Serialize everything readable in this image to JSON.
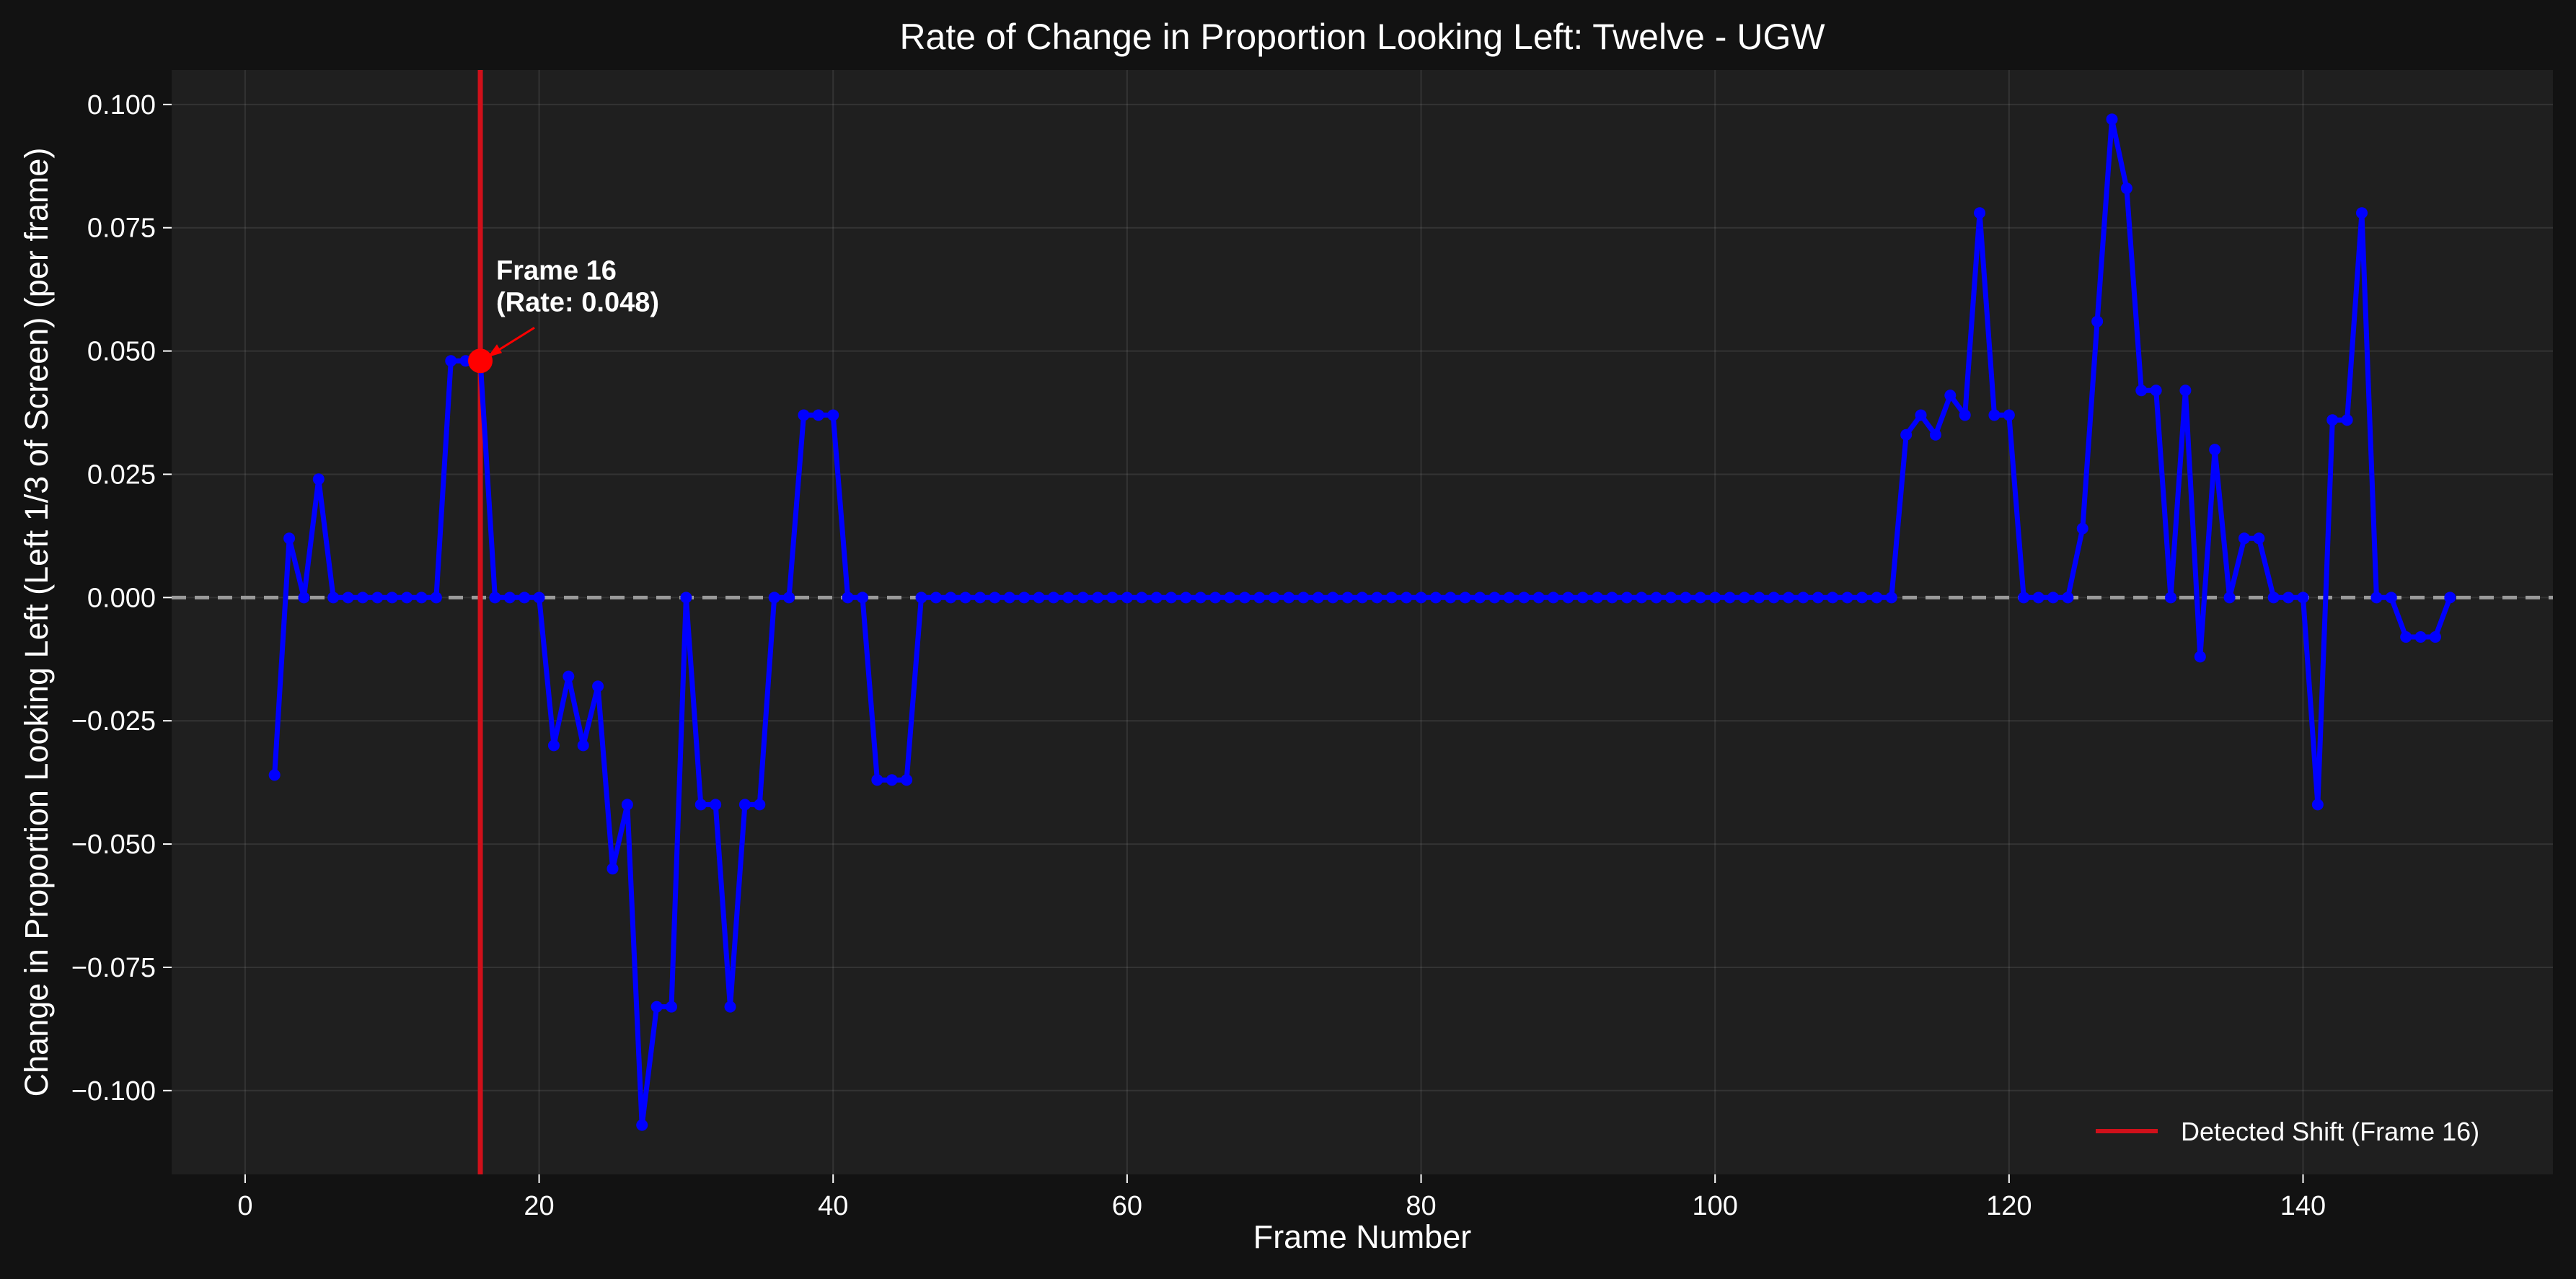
{
  "chart_data": {
    "type": "line",
    "title": "Rate of Change in Proportion Looking Left: Twelve - UGW",
    "xlabel": "Frame Number",
    "ylabel": "Change in Proportion Looking Left (Left 1/3 of Screen) (per frame)",
    "xlim": [
      -5,
      157
    ],
    "ylim": [
      -0.117,
      0.107
    ],
    "x_ticks": [
      0,
      20,
      40,
      60,
      80,
      100,
      120,
      140
    ],
    "y_ticks": [
      -0.1,
      -0.075,
      -0.05,
      -0.025,
      0.0,
      0.025,
      0.05,
      0.075,
      0.1
    ],
    "x_tick_labels": [
      "0",
      "20",
      "40",
      "60",
      "80",
      "100",
      "120",
      "140"
    ],
    "y_tick_labels": [
      "−0.100",
      "−0.075",
      "−0.050",
      "−0.025",
      "0.000",
      "0.025",
      "0.050",
      "0.075",
      "0.100"
    ],
    "grid": true,
    "reference_line_y": 0,
    "series": [
      {
        "color": "#0000ff",
        "x": [
          2,
          3,
          4,
          5,
          6,
          7,
          8,
          9,
          10,
          11,
          12,
          13,
          14,
          15,
          16,
          17,
          18,
          19,
          20,
          21,
          22,
          23,
          24,
          25,
          26,
          27,
          28,
          29,
          30,
          31,
          32,
          33,
          34,
          35,
          36,
          37,
          38,
          39,
          40,
          41,
          42,
          43,
          44,
          45,
          46,
          47,
          48,
          49,
          50,
          51,
          52,
          53,
          54,
          55,
          56,
          57,
          58,
          59,
          60,
          61,
          62,
          63,
          64,
          65,
          66,
          67,
          68,
          69,
          70,
          71,
          72,
          73,
          74,
          75,
          76,
          77,
          78,
          79,
          80,
          81,
          82,
          83,
          84,
          85,
          86,
          87,
          88,
          89,
          90,
          91,
          92,
          93,
          94,
          95,
          96,
          97,
          98,
          99,
          100,
          101,
          102,
          103,
          104,
          105,
          106,
          107,
          108,
          109,
          110,
          111,
          112,
          113,
          114,
          115,
          116,
          117,
          118,
          119,
          120,
          121,
          122,
          123,
          124,
          125,
          126,
          127,
          128,
          129,
          130,
          131,
          132,
          133,
          134,
          135,
          136,
          137,
          138,
          139,
          140,
          141,
          142,
          143,
          144,
          145,
          146,
          147,
          148,
          149,
          150
        ],
        "y": [
          -0.036,
          0.012,
          0,
          0.024,
          0,
          0,
          0,
          0,
          0,
          0,
          0,
          0,
          0.048,
          0.048,
          0.048,
          0,
          0,
          0,
          0,
          -0.03,
          -0.016,
          -0.03,
          -0.018,
          -0.055,
          -0.042,
          -0.107,
          -0.083,
          -0.083,
          0,
          -0.042,
          -0.042,
          -0.083,
          -0.042,
          -0.042,
          0,
          0,
          0.037,
          0.037,
          0.037,
          0,
          0,
          -0.037,
          -0.037,
          -0.037,
          0,
          0,
          0,
          0,
          0,
          0,
          0,
          0,
          0,
          0,
          0,
          0,
          0,
          0,
          0,
          0,
          0,
          0,
          0,
          0,
          0,
          0,
          0,
          0,
          0,
          0,
          0,
          0,
          0,
          0,
          0,
          0,
          0,
          0,
          0,
          0,
          0,
          0,
          0,
          0,
          0,
          0,
          0,
          0,
          0,
          0,
          0,
          0,
          0,
          0,
          0,
          0,
          0,
          0,
          0,
          0,
          0,
          0,
          0,
          0,
          0,
          0,
          0,
          0,
          0,
          0,
          0,
          0.033,
          0.037,
          0.033,
          0.041,
          0.037,
          0.078,
          0.037,
          0.037,
          0,
          0,
          0,
          0,
          0.014,
          0.056,
          0.097,
          0.083,
          0.042,
          0.042,
          0,
          0.042,
          -0.012,
          0.03,
          0,
          0.012,
          0.012,
          0,
          0,
          0,
          -0.042,
          0.036,
          0.036,
          0.078,
          0,
          0,
          -0.008,
          -0.008,
          -0.008,
          0
        ]
      }
    ],
    "detected_shift": {
      "frame": 16,
      "color": "#d0101a",
      "legend": "Detected Shift (Frame 16)"
    },
    "highlight_point": {
      "x": 16,
      "y": 0.048,
      "label_line1": "Frame 16",
      "label_line2": "(Rate: 0.048)"
    },
    "legend_position": "lower-right"
  }
}
